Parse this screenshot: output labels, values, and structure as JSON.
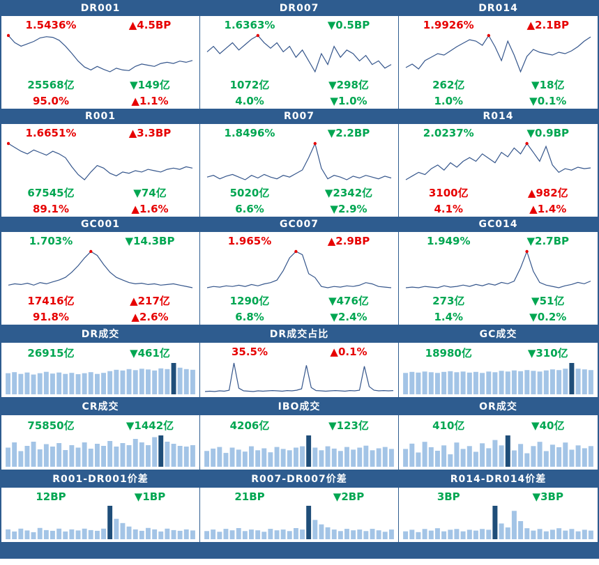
{
  "colors": {
    "header_bg": "#2e5c8f",
    "up_red": "#e60000",
    "down_green": "#00a651",
    "line": "#34558b",
    "bar": "#a3c4e6",
    "bar_highlight": "#1f4e79",
    "marker": "#e60000",
    "border": "#2e5c8f"
  },
  "rate_panels": [
    {
      "title": "DR001",
      "rate": "1.5436%",
      "rate_chg": "▲4.5BP",
      "rate_dir": "up",
      "vol": "25568亿",
      "vol_chg": "▼149亿",
      "vol_dir": "down",
      "pct": "95.0%",
      "pct_chg": "▲1.1%",
      "pct_dir": "up"
    },
    {
      "title": "DR007",
      "rate": "1.6363%",
      "rate_chg": "▼0.5BP",
      "rate_dir": "down",
      "vol": "1072亿",
      "vol_chg": "▼298亿",
      "vol_dir": "down",
      "pct": "4.0%",
      "pct_chg": "▼1.0%",
      "pct_dir": "down"
    },
    {
      "title": "DR014",
      "rate": "1.9926%",
      "rate_chg": "▲2.1BP",
      "rate_dir": "up",
      "vol": "262亿",
      "vol_chg": "▼18亿",
      "vol_dir": "down",
      "pct": "1.0%",
      "pct_chg": "▼0.1%",
      "pct_dir": "down"
    },
    {
      "title": "R001",
      "rate": "1.6651%",
      "rate_chg": "▲3.3BP",
      "rate_dir": "up",
      "vol": "67545亿",
      "vol_chg": "▼74亿",
      "vol_dir": "down",
      "pct": "89.1%",
      "pct_chg": "▲1.6%",
      "pct_dir": "up"
    },
    {
      "title": "R007",
      "rate": "1.8496%",
      "rate_chg": "▼2.2BP",
      "rate_dir": "down",
      "vol": "5020亿",
      "vol_chg": "▼2342亿",
      "vol_dir": "down",
      "pct": "6.6%",
      "pct_chg": "▼2.9%",
      "pct_dir": "down"
    },
    {
      "title": "R014",
      "rate": "2.0237%",
      "rate_chg": "▼0.9BP",
      "rate_dir": "down",
      "vol": "3100亿",
      "vol_chg": "▲982亿",
      "vol_dir": "up",
      "pct": "4.1%",
      "pct_chg": "▲1.4%",
      "pct_dir": "up"
    },
    {
      "title": "GC001",
      "rate": "1.703%",
      "rate_chg": "▼14.3BP",
      "rate_dir": "down",
      "vol": "17416亿",
      "vol_chg": "▲217亿",
      "vol_dir": "up",
      "pct": "91.8%",
      "pct_chg": "▲2.6%",
      "pct_dir": "up"
    },
    {
      "title": "GC007",
      "rate": "1.965%",
      "rate_chg": "▲2.9BP",
      "rate_dir": "up",
      "vol": "1290亿",
      "vol_chg": "▼476亿",
      "vol_dir": "down",
      "pct": "6.8%",
      "pct_chg": "▼2.4%",
      "pct_dir": "down"
    },
    {
      "title": "GC014",
      "rate": "1.949%",
      "rate_chg": "▼2.7BP",
      "rate_dir": "down",
      "vol": "273亿",
      "vol_chg": "▼51亿",
      "vol_dir": "down",
      "pct": "1.4%",
      "pct_chg": "▼0.2%",
      "pct_dir": "down"
    }
  ],
  "flow_panels": [
    {
      "title": "DR成交",
      "val": "26915亿",
      "chg": "▼461亿",
      "dir": "down"
    },
    {
      "title": "DR成交占比",
      "val": "35.5%",
      "chg": "▲0.1%",
      "dir": "up"
    },
    {
      "title": "GC成交",
      "val": "18980亿",
      "chg": "▼310亿",
      "dir": "down"
    },
    {
      "title": "CR成交",
      "val": "75850亿",
      "chg": "▼1442亿",
      "dir": "down"
    },
    {
      "title": "IBO成交",
      "val": "4206亿",
      "chg": "▼123亿",
      "dir": "down"
    },
    {
      "title": "OR成交",
      "val": "410亿",
      "chg": "▼40亿",
      "dir": "down"
    }
  ],
  "spread_panels": [
    {
      "title": "R001-DR001价差",
      "val": "12BP",
      "chg": "▼1BP",
      "dir": "down"
    },
    {
      "title": "R007-DR007价差",
      "val": "21BP",
      "chg": "▼2BP",
      "dir": "down"
    },
    {
      "title": "R014-DR014价差",
      "val": "3BP",
      "chg": "▼3BP",
      "dir": "down"
    }
  ],
  "chart_data": [
    {
      "type": "line",
      "title": "DR001",
      "values": [
        88,
        76,
        70,
        74,
        78,
        84,
        86,
        85,
        80,
        70,
        58,
        45,
        35,
        30,
        36,
        31,
        27,
        33,
        30,
        29,
        36,
        40,
        38,
        36,
        41,
        43,
        41,
        45,
        43,
        46
      ],
      "marker": 0
    },
    {
      "type": "line",
      "title": "DR007",
      "values": [
        55,
        58,
        54,
        57,
        60,
        56,
        59,
        62,
        64,
        60,
        57,
        60,
        55,
        58,
        52,
        56,
        50,
        44,
        54,
        48,
        58,
        52,
        56,
        54,
        50,
        53,
        48,
        50,
        46,
        48
      ],
      "marker": 8
    },
    {
      "type": "line",
      "title": "DR014",
      "values": [
        40,
        45,
        38,
        50,
        55,
        60,
        58,
        64,
        70,
        75,
        80,
        78,
        72,
        86,
        70,
        50,
        78,
        58,
        34,
        56,
        66,
        62,
        60,
        58,
        62,
        60,
        64,
        70,
        78,
        84
      ],
      "marker": 13
    },
    {
      "type": "line",
      "title": "R001",
      "values": [
        86,
        80,
        74,
        70,
        76,
        72,
        68,
        74,
        70,
        64,
        50,
        38,
        30,
        42,
        52,
        48,
        40,
        36,
        42,
        40,
        44,
        42,
        46,
        44,
        42,
        46,
        48,
        46,
        50,
        48
      ],
      "marker": 0
    },
    {
      "type": "line",
      "title": "R007",
      "values": [
        50,
        52,
        48,
        51,
        53,
        50,
        47,
        52,
        49,
        53,
        50,
        48,
        52,
        50,
        54,
        58,
        72,
        88,
        60,
        48,
        52,
        50,
        47,
        51,
        49,
        52,
        50,
        48,
        51,
        49
      ],
      "marker": 17
    },
    {
      "type": "line",
      "title": "R014",
      "values": [
        35,
        40,
        45,
        42,
        50,
        55,
        48,
        58,
        52,
        60,
        65,
        60,
        70,
        64,
        58,
        72,
        66,
        78,
        70,
        84,
        72,
        60,
        80,
        55,
        45,
        50,
        48,
        52,
        50,
        51
      ],
      "marker": 19
    },
    {
      "type": "line",
      "title": "GC001",
      "values": [
        30,
        32,
        31,
        33,
        30,
        34,
        32,
        35,
        38,
        42,
        50,
        60,
        72,
        82,
        76,
        62,
        50,
        42,
        38,
        34,
        32,
        33,
        31,
        32,
        30,
        31,
        32,
        30,
        28,
        26
      ],
      "marker": 13
    },
    {
      "type": "line",
      "title": "GC007",
      "values": [
        28,
        30,
        29,
        31,
        30,
        32,
        30,
        33,
        31,
        34,
        36,
        40,
        55,
        75,
        85,
        80,
        50,
        44,
        30,
        28,
        30,
        29,
        31,
        30,
        32,
        36,
        34,
        30,
        29,
        28
      ],
      "marker": 14
    },
    {
      "type": "line",
      "title": "GC014",
      "values": [
        30,
        31,
        30,
        32,
        31,
        30,
        33,
        31,
        32,
        34,
        32,
        35,
        33,
        36,
        34,
        38,
        36,
        40,
        60,
        85,
        55,
        38,
        34,
        32,
        30,
        33,
        35,
        38,
        36,
        40
      ],
      "marker": 19
    },
    {
      "type": "bar",
      "title": "DR成交",
      "values": [
        62,
        65,
        60,
        64,
        58,
        62,
        66,
        61,
        64,
        60,
        63,
        59,
        62,
        65,
        60,
        63,
        68,
        72,
        70,
        74,
        71,
        75,
        73,
        70,
        76,
        74,
        92,
        78,
        74,
        72
      ],
      "highlight": 26
    },
    {
      "type": "line",
      "title": "DR成交占比",
      "values": [
        10,
        11,
        10,
        12,
        11,
        14,
        95,
        20,
        12,
        11,
        10,
        12,
        11,
        12,
        13,
        12,
        11,
        13,
        12,
        14,
        18,
        88,
        22,
        13,
        12,
        11,
        12,
        13,
        12,
        11,
        13,
        12,
        14,
        85,
        25,
        14,
        12,
        13,
        12,
        13
      ],
      "marker": null
    },
    {
      "type": "bar",
      "title": "GC成交",
      "values": [
        60,
        63,
        61,
        64,
        62,
        60,
        63,
        65,
        62,
        64,
        61,
        63,
        60,
        64,
        62,
        66,
        64,
        67,
        65,
        68,
        66,
        64,
        67,
        70,
        68,
        72,
        88,
        72,
        70,
        68
      ],
      "highlight": 26
    },
    {
      "type": "bar",
      "title": "CR成交",
      "values": [
        55,
        70,
        45,
        60,
        72,
        50,
        65,
        58,
        68,
        48,
        62,
        55,
        70,
        52,
        66,
        60,
        74,
        58,
        68,
        62,
        80,
        70,
        62,
        85,
        90,
        72,
        66,
        60,
        58,
        62
      ],
      "highlight": 24
    },
    {
      "type": "bar",
      "title": "IBO成交",
      "values": [
        48,
        55,
        60,
        42,
        58,
        52,
        46,
        62,
        50,
        56,
        44,
        60,
        54,
        50,
        58,
        62,
        95,
        58,
        50,
        62,
        55,
        48,
        60,
        52,
        58,
        64,
        50,
        56,
        60,
        54
      ],
      "highlight": 16
    },
    {
      "type": "bar",
      "title": "OR成交",
      "values": [
        50,
        65,
        40,
        70,
        55,
        45,
        60,
        35,
        68,
        50,
        58,
        42,
        66,
        52,
        75,
        60,
        88,
        46,
        64,
        38,
        58,
        70,
        44,
        62,
        55,
        68,
        48,
        60,
        52,
        58
      ],
      "highlight": 16
    },
    {
      "type": "bar",
      "title": "R001-DR001价差",
      "values": [
        28,
        22,
        30,
        25,
        20,
        32,
        26,
        24,
        30,
        22,
        28,
        25,
        30,
        26,
        24,
        30,
        95,
        58,
        46,
        36,
        28,
        24,
        32,
        28,
        22,
        30,
        26,
        24,
        28,
        25
      ],
      "highlight": 16
    },
    {
      "type": "bar",
      "title": "R007-DR007价差",
      "values": [
        22,
        26,
        20,
        28,
        24,
        30,
        22,
        26,
        24,
        20,
        28,
        24,
        26,
        22,
        30,
        26,
        90,
        52,
        40,
        32,
        26,
        22,
        28,
        24,
        26,
        22,
        28,
        24,
        20,
        26
      ],
      "highlight": 16
    },
    {
      "type": "bar",
      "title": "R014-DR014价差",
      "values": [
        20,
        24,
        18,
        26,
        22,
        28,
        20,
        24,
        26,
        20,
        24,
        22,
        26,
        24,
        85,
        40,
        30,
        72,
        46,
        28,
        22,
        26,
        20,
        24,
        28,
        22,
        26,
        20,
        24,
        22
      ],
      "highlight": 14
    }
  ],
  "footer": {
    "text": ""
  }
}
